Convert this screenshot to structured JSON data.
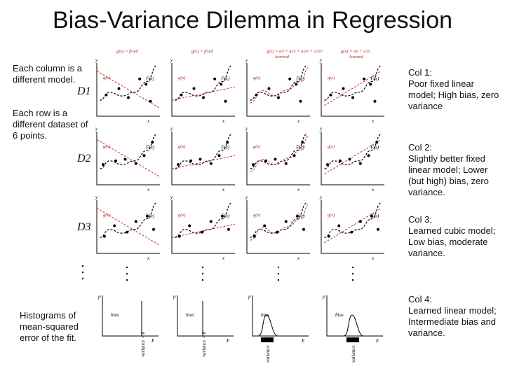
{
  "title": "Bias-Variance Dilemma in Regression",
  "left_notes": {
    "columns": "Each column is a different model.",
    "rows": "Each row is a different dataset of 6 points.",
    "histograms": "Histograms of mean-squared error of the fit."
  },
  "row_labels": [
    "D1",
    "D2",
    "D3"
  ],
  "column_headers": [
    {
      "line1": "g(x) = fixed",
      "line2": ""
    },
    {
      "line1": "g(x) = fixed",
      "line2": ""
    },
    {
      "line1": "g(x) = a0 + a1x + a2x² + a3x³",
      "line2": "learned"
    },
    {
      "line1": "g(x) = a0 + a1x",
      "line2": "learned"
    }
  ],
  "axis_labels": {
    "x": "x",
    "y": "y",
    "gx": "g(x)",
    "Fx": "F(x)",
    "p": "p",
    "E": "E",
    "bias": "bias"
  },
  "right_notes": [
    {
      "heading": "Col 1:",
      "body": "Poor fixed linear model; High bias, zero variance"
    },
    {
      "heading": "Col 2:",
      "body": "Slightly better fixed linear model; Lower (but high) bias, zero  variance."
    },
    {
      "heading": "Col 3:",
      "body": "Learned cubic model; Low bias, moderate variance."
    },
    {
      "heading": "Col 4:",
      "body": "Learned linear model; Intermediate bias and variance."
    }
  ],
  "hist_labels": [
    "variance = 0",
    "variance = 0",
    "variance",
    "variance"
  ],
  "ellipsis": "..."
}
